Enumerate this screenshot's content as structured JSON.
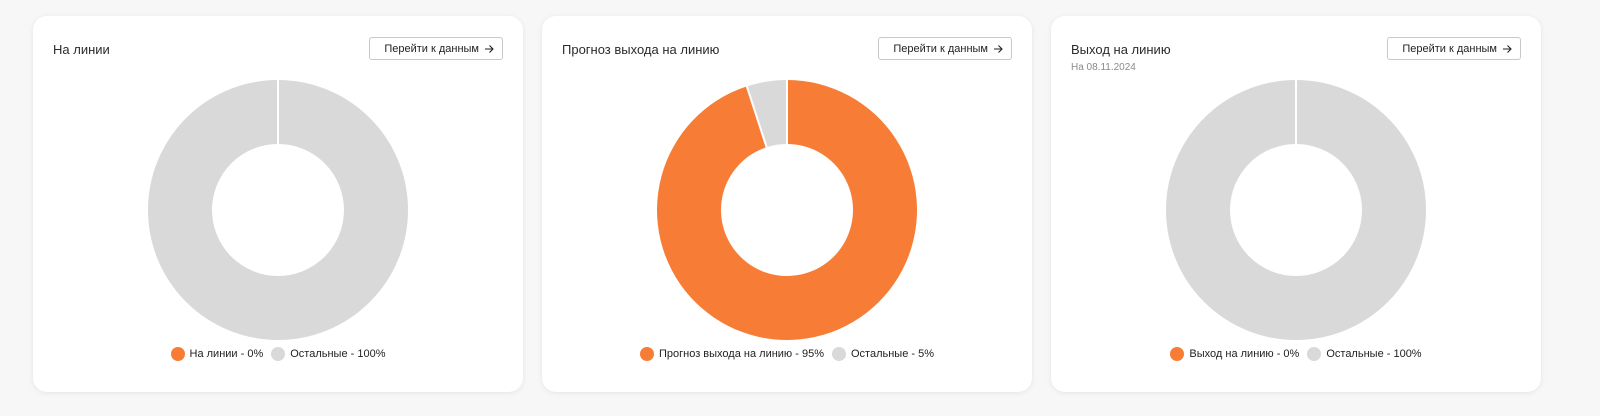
{
  "colors": {
    "accent": "#f77d36",
    "rest": "#d9d9d9",
    "separator": "#ffffff"
  },
  "cards": [
    {
      "title": "На линии",
      "subtitle": "",
      "button_label": "Перейти к данным",
      "legend": [
        {
          "label": "На линии - 0%",
          "color": "#f77d36"
        },
        {
          "label": "Остальные - 100%",
          "color": "#d9d9d9"
        }
      ]
    },
    {
      "title": "Прогноз выхода на линию",
      "subtitle": "",
      "button_label": "Перейти к данным",
      "legend": [
        {
          "label": "Прогноз выхода на линию - 95%",
          "color": "#f77d36"
        },
        {
          "label": "Остальные - 5%",
          "color": "#d9d9d9"
        }
      ]
    },
    {
      "title": "Выход на линию",
      "subtitle": "На 08.11.2024",
      "button_label": "Перейти к данным",
      "legend": [
        {
          "label": "Выход на линию - 0%",
          "color": "#f77d36"
        },
        {
          "label": "Остальные - 100%",
          "color": "#d9d9d9"
        }
      ]
    }
  ],
  "chart_data": [
    {
      "type": "pie",
      "variant": "donut",
      "categories": [
        "На линии",
        "Остальные"
      ],
      "values": [
        0,
        100
      ],
      "unit": "%",
      "colors": [
        "#f77d36",
        "#d9d9d9"
      ],
      "title": "На линии",
      "legend_position": "bottom"
    },
    {
      "type": "pie",
      "variant": "donut",
      "categories": [
        "Прогноз выхода на линию",
        "Остальные"
      ],
      "values": [
        95,
        5
      ],
      "unit": "%",
      "colors": [
        "#f77d36",
        "#d9d9d9"
      ],
      "title": "Прогноз выхода на линию",
      "legend_position": "bottom"
    },
    {
      "type": "pie",
      "variant": "donut",
      "categories": [
        "Выход на линию",
        "Остальные"
      ],
      "values": [
        0,
        100
      ],
      "unit": "%",
      "colors": [
        "#f77d36",
        "#d9d9d9"
      ],
      "title": "Выход на линию",
      "subtitle": "На 08.11.2024",
      "legend_position": "bottom"
    }
  ]
}
